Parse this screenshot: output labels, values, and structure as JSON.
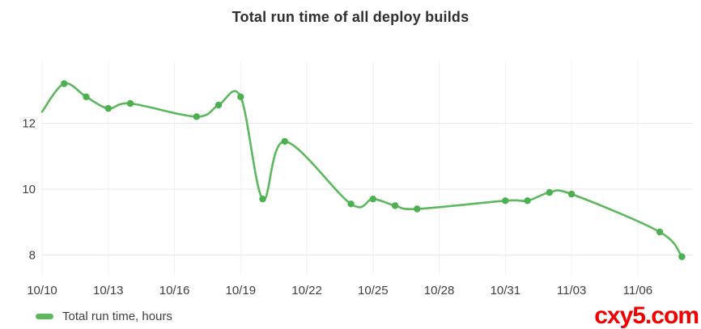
{
  "header": {
    "title": "Total run time of all deploy builds"
  },
  "legend": {
    "label": "Total run time, hours"
  },
  "watermark": {
    "text": "cxy5.com",
    "color": "#f20000"
  },
  "colors": {
    "line": "#5cb85c",
    "marker": "#4caf50",
    "grid_horizontal": "#e8e8e8",
    "grid_vertical": "#f2f2f2",
    "axis_text": "#3f3f3f",
    "title_text": "#2f2f2f",
    "background": "#ffffff"
  },
  "chart_data": {
    "type": "line",
    "title": "Total run time of all deploy builds",
    "xlabel": "",
    "ylabel": "",
    "grid": true,
    "legend_position": "bottom-left",
    "x_axis": {
      "tick_labels": [
        "10/10",
        "10/13",
        "10/16",
        "10/19",
        "10/22",
        "10/25",
        "10/28",
        "10/31",
        "11/03",
        "11/06"
      ],
      "tick_offsets_days": [
        0,
        3,
        6,
        9,
        12,
        15,
        18,
        21,
        24,
        27
      ],
      "max_days": 29.5
    },
    "y_axis": {
      "ticks": [
        8,
        10,
        12
      ],
      "range": [
        7.4,
        13.9
      ],
      "unit": "hours"
    },
    "series": [
      {
        "name": "Total run time, hours",
        "first_point_has_marker": false,
        "points": [
          {
            "date": "10/10",
            "day": 0,
            "value": 12.35
          },
          {
            "date": "10/11",
            "day": 1,
            "value": 13.2
          },
          {
            "date": "10/12",
            "day": 2,
            "value": 12.8
          },
          {
            "date": "10/13",
            "day": 3,
            "value": 12.45
          },
          {
            "date": "10/14",
            "day": 4,
            "value": 12.6
          },
          {
            "date": "10/17",
            "day": 7,
            "value": 12.2
          },
          {
            "date": "10/18",
            "day": 8,
            "value": 12.55
          },
          {
            "date": "10/19",
            "day": 9,
            "value": 12.8
          },
          {
            "date": "10/20",
            "day": 10,
            "value": 9.7
          },
          {
            "date": "10/21",
            "day": 11,
            "value": 11.45
          },
          {
            "date": "10/24",
            "day": 14,
            "value": 9.55
          },
          {
            "date": "10/25",
            "day": 15,
            "value": 9.7
          },
          {
            "date": "10/26",
            "day": 16,
            "value": 9.5
          },
          {
            "date": "10/27",
            "day": 17,
            "value": 9.4
          },
          {
            "date": "10/31",
            "day": 21,
            "value": 9.65
          },
          {
            "date": "11/01",
            "day": 22,
            "value": 9.65
          },
          {
            "date": "11/02",
            "day": 23,
            "value": 9.9
          },
          {
            "date": "11/03",
            "day": 24,
            "value": 9.85
          },
          {
            "date": "11/07",
            "day": 28,
            "value": 8.7
          },
          {
            "date": "11/08",
            "day": 29,
            "value": 7.95
          }
        ]
      }
    ]
  }
}
